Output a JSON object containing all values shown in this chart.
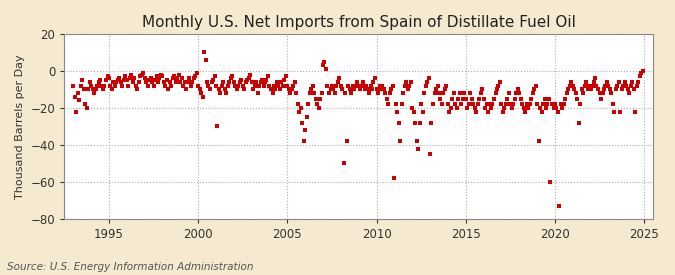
{
  "title": "Monthly U.S. Net Imports from Spain of Distillate Fuel Oil",
  "ylabel": "Thousand Barrels per Day",
  "source": "Source: U.S. Energy Information Administration",
  "ylim": [
    -80,
    20
  ],
  "yticks": [
    -80,
    -60,
    -40,
    -20,
    0,
    20
  ],
  "xlim_start": 1992.5,
  "xlim_end": 2025.5,
  "xticks": [
    1995,
    2000,
    2005,
    2010,
    2015,
    2020,
    2025
  ],
  "background_color": "#f5e9d0",
  "plot_bg_color": "#ffffff",
  "marker_color": "#cc0000",
  "grid_color": "#aaaaaa",
  "title_fontsize": 11,
  "label_fontsize": 8,
  "tick_fontsize": 8.5,
  "source_fontsize": 7.5,
  "data": [
    [
      1993.0,
      -8
    ],
    [
      1993.08,
      -14
    ],
    [
      1993.17,
      -22
    ],
    [
      1993.25,
      -12
    ],
    [
      1993.33,
      -16
    ],
    [
      1993.42,
      -8
    ],
    [
      1993.5,
      -5
    ],
    [
      1993.58,
      -10
    ],
    [
      1993.67,
      -18
    ],
    [
      1993.75,
      -20
    ],
    [
      1993.83,
      -10
    ],
    [
      1993.92,
      -6
    ],
    [
      1994.0,
      -8
    ],
    [
      1994.08,
      -10
    ],
    [
      1994.17,
      -12
    ],
    [
      1994.25,
      -10
    ],
    [
      1994.33,
      -8
    ],
    [
      1994.42,
      -6
    ],
    [
      1994.5,
      -5
    ],
    [
      1994.58,
      -8
    ],
    [
      1994.67,
      -10
    ],
    [
      1994.75,
      -8
    ],
    [
      1994.83,
      -5
    ],
    [
      1994.92,
      -3
    ],
    [
      1995.0,
      -4
    ],
    [
      1995.08,
      -8
    ],
    [
      1995.17,
      -10
    ],
    [
      1995.25,
      -6
    ],
    [
      1995.33,
      -8
    ],
    [
      1995.42,
      -6
    ],
    [
      1995.5,
      -5
    ],
    [
      1995.58,
      -4
    ],
    [
      1995.67,
      -6
    ],
    [
      1995.75,
      -8
    ],
    [
      1995.83,
      -5
    ],
    [
      1995.92,
      -3
    ],
    [
      1996.0,
      -5
    ],
    [
      1996.08,
      -8
    ],
    [
      1996.17,
      -4
    ],
    [
      1996.25,
      -2
    ],
    [
      1996.33,
      -6
    ],
    [
      1996.42,
      -4
    ],
    [
      1996.5,
      -8
    ],
    [
      1996.58,
      -10
    ],
    [
      1996.67,
      -6
    ],
    [
      1996.75,
      -3
    ],
    [
      1996.83,
      -2
    ],
    [
      1996.92,
      -1
    ],
    [
      1997.0,
      -4
    ],
    [
      1997.08,
      -6
    ],
    [
      1997.17,
      -8
    ],
    [
      1997.25,
      -5
    ],
    [
      1997.33,
      -4
    ],
    [
      1997.42,
      -6
    ],
    [
      1997.5,
      -8
    ],
    [
      1997.58,
      -5
    ],
    [
      1997.67,
      -3
    ],
    [
      1997.75,
      -6
    ],
    [
      1997.83,
      -4
    ],
    [
      1997.92,
      -2
    ],
    [
      1998.0,
      -3
    ],
    [
      1998.08,
      -6
    ],
    [
      1998.17,
      -8
    ],
    [
      1998.25,
      -5
    ],
    [
      1998.33,
      -10
    ],
    [
      1998.42,
      -6
    ],
    [
      1998.5,
      -8
    ],
    [
      1998.58,
      -4
    ],
    [
      1998.67,
      -3
    ],
    [
      1998.75,
      -6
    ],
    [
      1998.83,
      -4
    ],
    [
      1998.92,
      -2
    ],
    [
      1999.0,
      -6
    ],
    [
      1999.08,
      -4
    ],
    [
      1999.17,
      -8
    ],
    [
      1999.25,
      -6
    ],
    [
      1999.33,
      -10
    ],
    [
      1999.42,
      -6
    ],
    [
      1999.5,
      -4
    ],
    [
      1999.58,
      -8
    ],
    [
      1999.67,
      -6
    ],
    [
      1999.75,
      -4
    ],
    [
      1999.83,
      -3
    ],
    [
      1999.92,
      -1
    ],
    [
      2000.0,
      -8
    ],
    [
      2000.08,
      -10
    ],
    [
      2000.17,
      -12
    ],
    [
      2000.25,
      -14
    ],
    [
      2000.33,
      10
    ],
    [
      2000.42,
      6
    ],
    [
      2000.5,
      -6
    ],
    [
      2000.58,
      -8
    ],
    [
      2000.67,
      -10
    ],
    [
      2000.75,
      -6
    ],
    [
      2000.83,
      -5
    ],
    [
      2000.92,
      -3
    ],
    [
      2001.0,
      -8
    ],
    [
      2001.08,
      -30
    ],
    [
      2001.17,
      -10
    ],
    [
      2001.25,
      -12
    ],
    [
      2001.33,
      -8
    ],
    [
      2001.42,
      -6
    ],
    [
      2001.5,
      -10
    ],
    [
      2001.58,
      -12
    ],
    [
      2001.67,
      -8
    ],
    [
      2001.75,
      -6
    ],
    [
      2001.83,
      -4
    ],
    [
      2001.92,
      -3
    ],
    [
      2002.0,
      -6
    ],
    [
      2002.08,
      -8
    ],
    [
      2002.17,
      -10
    ],
    [
      2002.25,
      -8
    ],
    [
      2002.33,
      -6
    ],
    [
      2002.42,
      -5
    ],
    [
      2002.5,
      -8
    ],
    [
      2002.58,
      -10
    ],
    [
      2002.67,
      -6
    ],
    [
      2002.75,
      -5
    ],
    [
      2002.83,
      -4
    ],
    [
      2002.92,
      -2
    ],
    [
      2003.0,
      -6
    ],
    [
      2003.08,
      -10
    ],
    [
      2003.17,
      -8
    ],
    [
      2003.25,
      -6
    ],
    [
      2003.33,
      -12
    ],
    [
      2003.42,
      -8
    ],
    [
      2003.5,
      -6
    ],
    [
      2003.58,
      -5
    ],
    [
      2003.67,
      -8
    ],
    [
      2003.75,
      -6
    ],
    [
      2003.83,
      -5
    ],
    [
      2003.92,
      -3
    ],
    [
      2004.0,
      -8
    ],
    [
      2004.08,
      -10
    ],
    [
      2004.17,
      -12
    ],
    [
      2004.25,
      -8
    ],
    [
      2004.33,
      -10
    ],
    [
      2004.42,
      -6
    ],
    [
      2004.5,
      -8
    ],
    [
      2004.58,
      -10
    ],
    [
      2004.67,
      -6
    ],
    [
      2004.75,
      -8
    ],
    [
      2004.83,
      -5
    ],
    [
      2004.92,
      -3
    ],
    [
      2005.0,
      -8
    ],
    [
      2005.08,
      -10
    ],
    [
      2005.17,
      -12
    ],
    [
      2005.25,
      -10
    ],
    [
      2005.33,
      -8
    ],
    [
      2005.42,
      -6
    ],
    [
      2005.5,
      -12
    ],
    [
      2005.58,
      -18
    ],
    [
      2005.67,
      -22
    ],
    [
      2005.75,
      -20
    ],
    [
      2005.83,
      -28
    ],
    [
      2005.92,
      -38
    ],
    [
      2006.0,
      -32
    ],
    [
      2006.08,
      -25
    ],
    [
      2006.17,
      -18
    ],
    [
      2006.25,
      -12
    ],
    [
      2006.33,
      -10
    ],
    [
      2006.42,
      -8
    ],
    [
      2006.5,
      -12
    ],
    [
      2006.58,
      -15
    ],
    [
      2006.67,
      -18
    ],
    [
      2006.75,
      -20
    ],
    [
      2006.83,
      -15
    ],
    [
      2006.92,
      -12
    ],
    [
      2007.0,
      3
    ],
    [
      2007.08,
      5
    ],
    [
      2007.17,
      1
    ],
    [
      2007.25,
      -8
    ],
    [
      2007.33,
      -12
    ],
    [
      2007.42,
      -10
    ],
    [
      2007.5,
      -8
    ],
    [
      2007.58,
      -10
    ],
    [
      2007.67,
      -12
    ],
    [
      2007.75,
      -8
    ],
    [
      2007.83,
      -6
    ],
    [
      2007.92,
      -4
    ],
    [
      2008.0,
      -8
    ],
    [
      2008.08,
      -10
    ],
    [
      2008.17,
      -50
    ],
    [
      2008.25,
      -12
    ],
    [
      2008.33,
      -38
    ],
    [
      2008.42,
      -8
    ],
    [
      2008.5,
      -10
    ],
    [
      2008.58,
      -12
    ],
    [
      2008.67,
      -8
    ],
    [
      2008.75,
      -10
    ],
    [
      2008.83,
      -8
    ],
    [
      2008.92,
      -6
    ],
    [
      2009.0,
      -8
    ],
    [
      2009.08,
      -10
    ],
    [
      2009.17,
      -8
    ],
    [
      2009.25,
      -6
    ],
    [
      2009.33,
      -10
    ],
    [
      2009.42,
      -8
    ],
    [
      2009.5,
      -10
    ],
    [
      2009.58,
      -12
    ],
    [
      2009.67,
      -8
    ],
    [
      2009.75,
      -10
    ],
    [
      2009.83,
      -6
    ],
    [
      2009.92,
      -4
    ],
    [
      2010.0,
      -10
    ],
    [
      2010.08,
      -12
    ],
    [
      2010.17,
      -8
    ],
    [
      2010.25,
      -10
    ],
    [
      2010.33,
      -8
    ],
    [
      2010.42,
      -10
    ],
    [
      2010.5,
      -12
    ],
    [
      2010.58,
      -15
    ],
    [
      2010.67,
      -18
    ],
    [
      2010.75,
      -12
    ],
    [
      2010.83,
      -10
    ],
    [
      2010.92,
      -8
    ],
    [
      2011.0,
      -58
    ],
    [
      2011.08,
      -18
    ],
    [
      2011.17,
      -22
    ],
    [
      2011.25,
      -28
    ],
    [
      2011.33,
      -38
    ],
    [
      2011.42,
      -18
    ],
    [
      2011.5,
      -12
    ],
    [
      2011.58,
      -8
    ],
    [
      2011.67,
      -6
    ],
    [
      2011.75,
      -10
    ],
    [
      2011.83,
      -8
    ],
    [
      2011.92,
      -6
    ],
    [
      2012.0,
      -20
    ],
    [
      2012.08,
      -22
    ],
    [
      2012.17,
      -28
    ],
    [
      2012.25,
      -38
    ],
    [
      2012.33,
      -42
    ],
    [
      2012.42,
      -28
    ],
    [
      2012.5,
      -18
    ],
    [
      2012.58,
      -22
    ],
    [
      2012.67,
      -12
    ],
    [
      2012.75,
      -8
    ],
    [
      2012.83,
      -6
    ],
    [
      2012.92,
      -4
    ],
    [
      2013.0,
      -45
    ],
    [
      2013.08,
      -28
    ],
    [
      2013.17,
      -18
    ],
    [
      2013.25,
      -12
    ],
    [
      2013.33,
      -10
    ],
    [
      2013.42,
      -8
    ],
    [
      2013.5,
      -12
    ],
    [
      2013.58,
      -15
    ],
    [
      2013.67,
      -18
    ],
    [
      2013.75,
      -12
    ],
    [
      2013.83,
      -10
    ],
    [
      2013.92,
      -8
    ],
    [
      2014.0,
      -18
    ],
    [
      2014.08,
      -22
    ],
    [
      2014.17,
      -20
    ],
    [
      2014.25,
      -15
    ],
    [
      2014.33,
      -12
    ],
    [
      2014.42,
      -18
    ],
    [
      2014.5,
      -20
    ],
    [
      2014.58,
      -15
    ],
    [
      2014.67,
      -12
    ],
    [
      2014.75,
      -18
    ],
    [
      2014.83,
      -15
    ],
    [
      2014.92,
      -12
    ],
    [
      2015.0,
      -15
    ],
    [
      2015.08,
      -20
    ],
    [
      2015.17,
      -18
    ],
    [
      2015.25,
      -12
    ],
    [
      2015.33,
      -15
    ],
    [
      2015.42,
      -18
    ],
    [
      2015.5,
      -20
    ],
    [
      2015.58,
      -22
    ],
    [
      2015.67,
      -18
    ],
    [
      2015.75,
      -15
    ],
    [
      2015.83,
      -12
    ],
    [
      2015.92,
      -10
    ],
    [
      2016.0,
      -15
    ],
    [
      2016.08,
      -20
    ],
    [
      2016.17,
      -18
    ],
    [
      2016.25,
      -22
    ],
    [
      2016.33,
      -18
    ],
    [
      2016.42,
      -20
    ],
    [
      2016.5,
      -18
    ],
    [
      2016.58,
      -15
    ],
    [
      2016.67,
      -12
    ],
    [
      2016.75,
      -10
    ],
    [
      2016.83,
      -8
    ],
    [
      2016.92,
      -6
    ],
    [
      2017.0,
      -18
    ],
    [
      2017.08,
      -22
    ],
    [
      2017.17,
      -20
    ],
    [
      2017.25,
      -18
    ],
    [
      2017.33,
      -15
    ],
    [
      2017.42,
      -12
    ],
    [
      2017.5,
      -18
    ],
    [
      2017.58,
      -20
    ],
    [
      2017.67,
      -18
    ],
    [
      2017.75,
      -15
    ],
    [
      2017.83,
      -12
    ],
    [
      2017.92,
      -10
    ],
    [
      2018.0,
      -12
    ],
    [
      2018.08,
      -15
    ],
    [
      2018.17,
      -18
    ],
    [
      2018.25,
      -20
    ],
    [
      2018.33,
      -22
    ],
    [
      2018.42,
      -18
    ],
    [
      2018.5,
      -20
    ],
    [
      2018.58,
      -18
    ],
    [
      2018.67,
      -15
    ],
    [
      2018.75,
      -12
    ],
    [
      2018.83,
      -10
    ],
    [
      2018.92,
      -8
    ],
    [
      2019.0,
      -18
    ],
    [
      2019.08,
      -38
    ],
    [
      2019.17,
      -20
    ],
    [
      2019.25,
      -22
    ],
    [
      2019.33,
      -18
    ],
    [
      2019.42,
      -15
    ],
    [
      2019.5,
      -20
    ],
    [
      2019.58,
      -18
    ],
    [
      2019.67,
      -15
    ],
    [
      2019.75,
      -60
    ],
    [
      2019.83,
      -18
    ],
    [
      2019.92,
      -20
    ],
    [
      2020.0,
      -18
    ],
    [
      2020.08,
      -20
    ],
    [
      2020.17,
      -22
    ],
    [
      2020.25,
      -73
    ],
    [
      2020.33,
      -18
    ],
    [
      2020.42,
      -20
    ],
    [
      2020.5,
      -18
    ],
    [
      2020.58,
      -15
    ],
    [
      2020.67,
      -12
    ],
    [
      2020.75,
      -10
    ],
    [
      2020.83,
      -8
    ],
    [
      2020.92,
      -6
    ],
    [
      2021.0,
      -8
    ],
    [
      2021.08,
      -10
    ],
    [
      2021.17,
      -12
    ],
    [
      2021.25,
      -15
    ],
    [
      2021.33,
      -28
    ],
    [
      2021.42,
      -18
    ],
    [
      2021.5,
      -10
    ],
    [
      2021.58,
      -12
    ],
    [
      2021.67,
      -8
    ],
    [
      2021.75,
      -6
    ],
    [
      2021.83,
      -10
    ],
    [
      2021.92,
      -8
    ],
    [
      2022.0,
      -10
    ],
    [
      2022.08,
      -8
    ],
    [
      2022.17,
      -6
    ],
    [
      2022.25,
      -4
    ],
    [
      2022.33,
      -8
    ],
    [
      2022.42,
      -10
    ],
    [
      2022.5,
      -12
    ],
    [
      2022.58,
      -15
    ],
    [
      2022.67,
      -12
    ],
    [
      2022.75,
      -10
    ],
    [
      2022.83,
      -8
    ],
    [
      2022.92,
      -6
    ],
    [
      2023.0,
      -8
    ],
    [
      2023.08,
      -10
    ],
    [
      2023.17,
      -12
    ],
    [
      2023.25,
      -18
    ],
    [
      2023.33,
      -22
    ],
    [
      2023.42,
      -10
    ],
    [
      2023.5,
      -8
    ],
    [
      2023.58,
      -6
    ],
    [
      2023.67,
      -22
    ],
    [
      2023.75,
      -10
    ],
    [
      2023.83,
      -8
    ],
    [
      2023.92,
      -6
    ],
    [
      2024.0,
      -8
    ],
    [
      2024.08,
      -10
    ],
    [
      2024.17,
      -12
    ],
    [
      2024.25,
      -8
    ],
    [
      2024.33,
      -6
    ],
    [
      2024.42,
      -10
    ],
    [
      2024.5,
      -22
    ],
    [
      2024.58,
      -8
    ],
    [
      2024.67,
      -6
    ],
    [
      2024.75,
      -3
    ],
    [
      2024.83,
      -1
    ],
    [
      2024.92,
      0
    ]
  ]
}
